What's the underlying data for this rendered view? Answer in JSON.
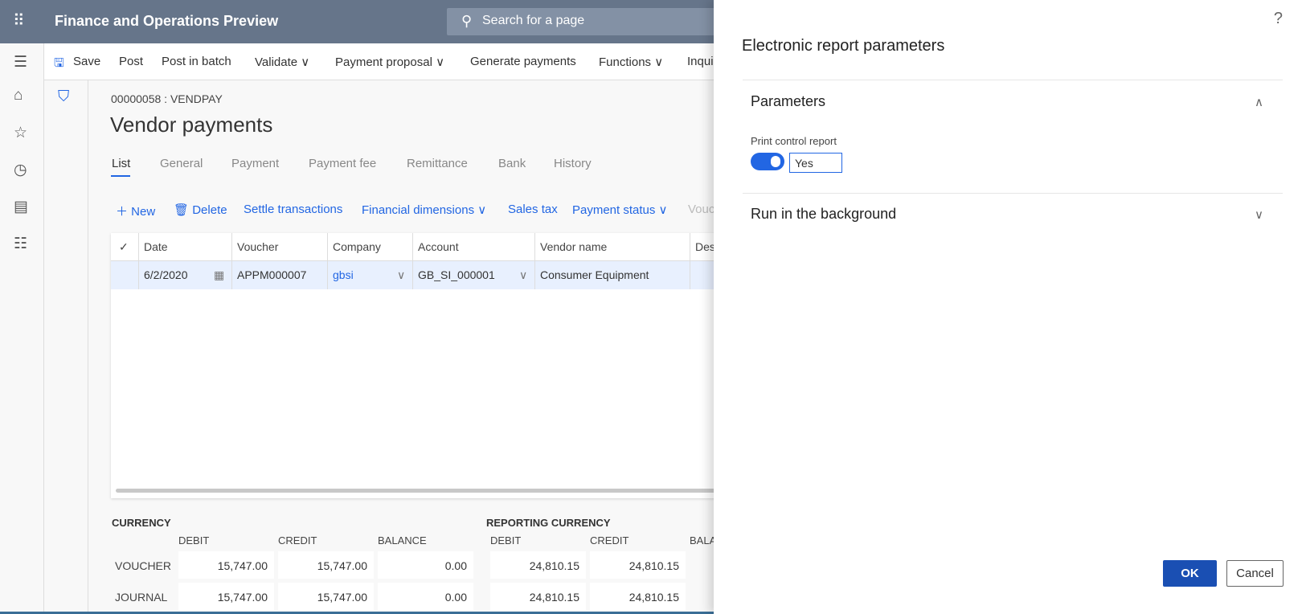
{
  "header": {
    "app_title": "Finance and Operations Preview",
    "search_placeholder": "Search for a page"
  },
  "toolbar": {
    "items": [
      "Save",
      "Post",
      "Post in batch",
      "Validate",
      "Payment proposal",
      "Generate payments",
      "Functions",
      "Inqui"
    ]
  },
  "page": {
    "breadcrumb": "00000058 : VENDPAY",
    "title": "Vendor payments",
    "tabs": [
      "List",
      "General",
      "Payment",
      "Payment fee",
      "Remittance",
      "Bank",
      "History"
    ],
    "actions": [
      "New",
      "Delete",
      "Settle transactions",
      "Financial dimensions",
      "Sales tax",
      "Payment status",
      "Vouc"
    ]
  },
  "grid": {
    "columns": [
      "Date",
      "Voucher",
      "Company",
      "Account",
      "Vendor name",
      "Des"
    ],
    "row": {
      "date": "6/2/2020",
      "voucher": "APPM000007",
      "company": "gbsi",
      "account": "GB_SI_000001",
      "vendor": "Consumer Equipment"
    }
  },
  "totals": {
    "currency_label": "CURRENCY",
    "reporting_label": "REPORTING CURRENCY",
    "debit": "DEBIT",
    "credit": "CREDIT",
    "balance": "BALANCE",
    "bala": "BALA",
    "voucher_label": "VOUCHER",
    "journal_label": "JOURNAL",
    "voucher": [
      "15,747.00",
      "15,747.00",
      "0.00",
      "24,810.15",
      "24,810.15"
    ],
    "journal": [
      "15,747.00",
      "15,747.00",
      "0.00",
      "24,810.15",
      "24,810.15"
    ]
  },
  "dialog": {
    "title": "Electronic report parameters",
    "help": "?",
    "section1": "Parameters",
    "field_label": "Print control report",
    "field_value": "Yes",
    "toggle_on": true,
    "section2": "Run in the background",
    "ok": "OK",
    "cancel": "Cancel"
  },
  "colors": {
    "header": "#66758a",
    "accent": "#2266e3",
    "ok_button": "#1a4fb3"
  }
}
